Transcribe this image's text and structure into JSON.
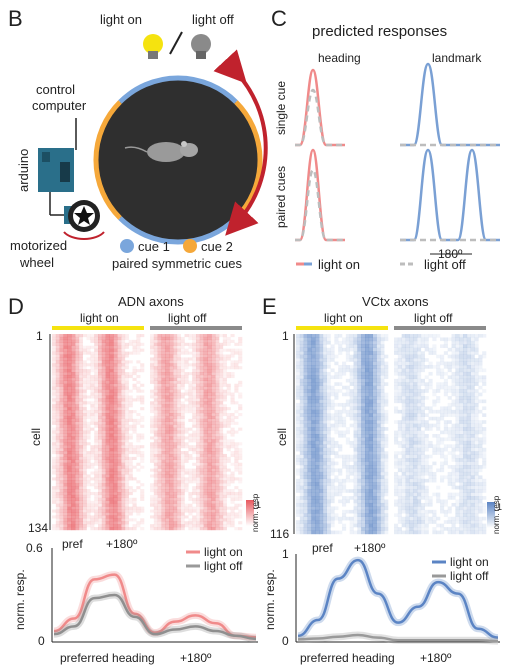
{
  "panel_B": {
    "letter": "B",
    "light_on": "light on",
    "light_off": "light off",
    "control_computer_1": "control",
    "control_computer_2": "computer",
    "arduino": "arduino",
    "motorized_1": "motorized",
    "motorized_2": "wheel",
    "cue1": "cue 1",
    "cue2": "cue 2",
    "caption": "paired symmetric cues",
    "colors": {
      "cue1": "#7aa6dc",
      "cue2": "#f5a83a",
      "arena": "#2f2f2f",
      "arrow": "#c0222d",
      "bulb_on": "#f5e30f",
      "bulb_off": "#8a8a8a"
    }
  },
  "panel_C": {
    "letter": "C",
    "title": "predicted responses",
    "col_heading": "heading",
    "col_landmark": "landmark",
    "row_single": "single cue",
    "row_paired": "paired cues",
    "scale_label": "180º",
    "legend_on": "light on",
    "legend_off": "light off",
    "colors": {
      "red": "#f08a8a",
      "blue": "#7aa0d4",
      "gray": "#bdbdbd"
    }
  },
  "panel_D": {
    "letter": "D",
    "title": "ADN axons",
    "light_on": "light on",
    "light_off": "light off",
    "y_top": "1",
    "y_bottom": "134",
    "y_label": "cell",
    "x_pref": "pref",
    "x_180": "+180º",
    "cbar_top": "1",
    "cbar_label": "norm. resp",
    "color": "#e8595f"
  },
  "panel_D_chart": {
    "y_top": "0.6",
    "y_bottom": "0",
    "ylabel": "norm. resp.",
    "xlabel": "preferred heading",
    "x_180": "+180º",
    "legend_on": "light on",
    "legend_off": "light off"
  },
  "panel_E": {
    "letter": "E",
    "title": "VCtx axons",
    "light_on": "light on",
    "light_off": "light off",
    "y_top": "1",
    "y_bottom": "116",
    "y_label": "cell",
    "x_pref": "pref",
    "x_180": "+180º",
    "cbar_top": "1",
    "cbar_label": "norm. resp",
    "color": "#5b84c4"
  },
  "panel_E_chart": {
    "y_top": "1",
    "y_bottom": "0",
    "ylabel": "norm. resp.",
    "xlabel": "preferred heading",
    "x_180": "+180º",
    "legend_on": "light on",
    "legend_off": "light off"
  },
  "chart_data": [
    {
      "type": "line",
      "x": [
        0,
        0.1,
        0.2,
        0.3,
        0.4,
        0.5,
        0.6,
        0.7,
        0.8,
        0.9,
        1.0
      ],
      "series": [
        {
          "name": "light on",
          "values": [
            0.07,
            0.15,
            0.4,
            0.43,
            0.18,
            0.06,
            0.13,
            0.17,
            0.12,
            0.04,
            0.03
          ]
        },
        {
          "name": "light off",
          "values": [
            0.05,
            0.1,
            0.28,
            0.3,
            0.16,
            0.05,
            0.08,
            0.1,
            0.07,
            0.04,
            0.02
          ]
        }
      ],
      "ylim": [
        0,
        0.6
      ],
      "xlabel": "preferred heading",
      "ylabel": "norm. resp."
    },
    {
      "type": "line",
      "x": [
        0,
        0.1,
        0.2,
        0.3,
        0.4,
        0.5,
        0.6,
        0.7,
        0.8,
        0.9,
        1.0
      ],
      "series": [
        {
          "name": "light on",
          "values": [
            0.07,
            0.25,
            0.72,
            0.93,
            0.55,
            0.22,
            0.4,
            0.68,
            0.55,
            0.15,
            0.05
          ]
        },
        {
          "name": "light off",
          "values": [
            0.03,
            0.04,
            0.06,
            0.08,
            0.05,
            0.02,
            0.02,
            0.02,
            0.02,
            0.02,
            0.01
          ]
        }
      ],
      "ylim": [
        0,
        1
      ],
      "xlabel": "preferred heading",
      "ylabel": "norm. resp."
    }
  ]
}
